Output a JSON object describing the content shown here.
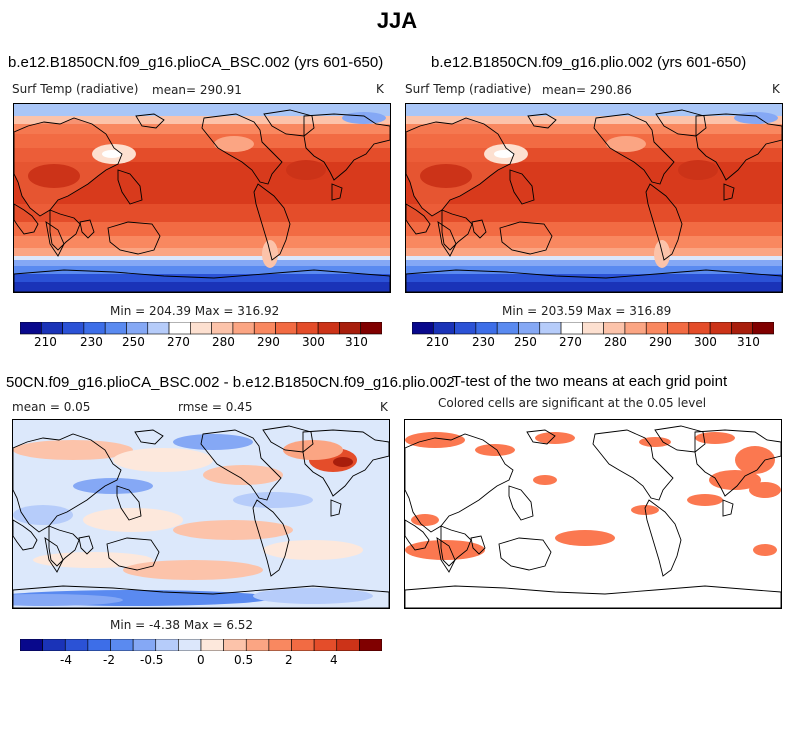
{
  "page": {
    "title": "JJA"
  },
  "chart_data": [
    {
      "type": "heatmap",
      "title": "b.e12.B1850CN.f09_g16.plioCA_BSC.002 (yrs 601-650)",
      "variable": "Surf Temp (radiative)",
      "mean_label": "mean= 290.91",
      "units": "K",
      "min": 204.39,
      "max": 316.92,
      "stats_label": "Min = 204.39 Max = 316.92",
      "colorbar": {
        "ticks": [
          "210",
          "230",
          "250",
          "270",
          "280",
          "290",
          "300",
          "310"
        ],
        "colors": [
          "#08088c",
          "#1a33b8",
          "#2b52d6",
          "#3d6ee8",
          "#5a8af0",
          "#85a8f5",
          "#b6ccfa",
          "#ffffff",
          "#fde0d0",
          "#fcc3aa",
          "#fba583",
          "#f98860",
          "#f26b43",
          "#e44d2a",
          "#cc3318",
          "#a81e0c",
          "#800000"
        ]
      }
    },
    {
      "type": "heatmap",
      "title": "b.e12.B1850CN.f09_g16.plio.002 (yrs 601-650)",
      "variable": "Surf Temp (radiative)",
      "mean_label": "mean= 290.86",
      "units": "K",
      "min": 203.59,
      "max": 316.89,
      "stats_label": "Min = 203.59 Max = 316.89",
      "colorbar": {
        "ticks": [
          "210",
          "230",
          "250",
          "270",
          "280",
          "290",
          "300",
          "310"
        ]
      }
    },
    {
      "type": "heatmap",
      "title": "50CN.f09_g16.plioCA_BSC.002 - b.e12.B1850CN.f09_g16.plio.002",
      "mean_label": "mean =    0.05",
      "rmse_label": "rmse =    0.45",
      "units": "K",
      "min": -4.38,
      "max": 6.52,
      "stats_label": "Min =  -4.38 Max =   6.52",
      "colorbar": {
        "ticks": [
          "-4",
          "-2",
          "-0.5",
          "0",
          "0.5",
          "2",
          "4"
        ],
        "colors": [
          "#08088c",
          "#1a33b8",
          "#2b52d6",
          "#3d6ee8",
          "#5a8af0",
          "#85a8f5",
          "#b6ccfa",
          "#dce7fb",
          "#fde8dc",
          "#fcc3aa",
          "#fba583",
          "#f98860",
          "#f26b43",
          "#e44d2a",
          "#cc3318",
          "#800000"
        ]
      }
    },
    {
      "type": "heatmap",
      "title": "T-test of the two means at each grid point",
      "subtitle": "Colored cells are significant at the 0.05 level",
      "significance_color": "#fb7850"
    }
  ]
}
